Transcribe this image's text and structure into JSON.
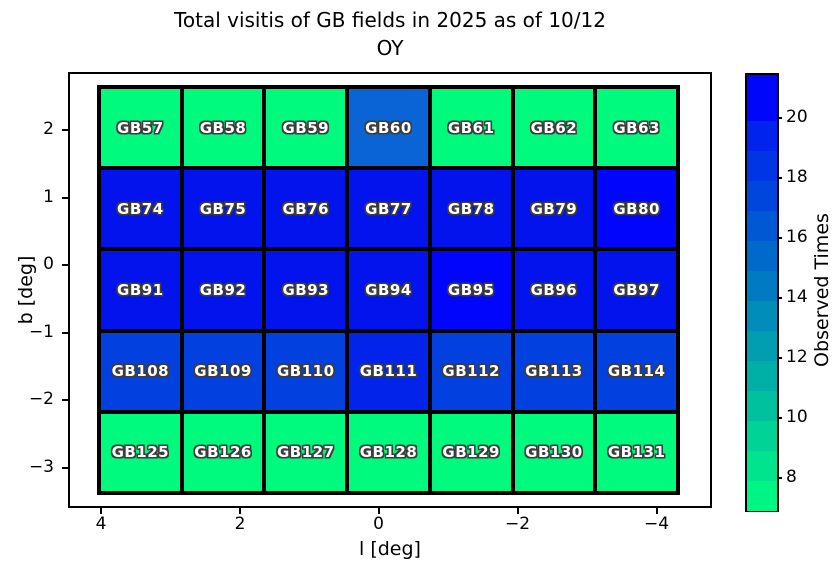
{
  "title": {
    "line1": "Total visitis of GB fields in 2025 as of 10/12",
    "line2": "OY"
  },
  "x_axis": {
    "label": "l [deg]",
    "ticks": [
      "4",
      "2",
      "0",
      "−2",
      "−4"
    ]
  },
  "y_axis": {
    "label": "b [deg]",
    "ticks": [
      "2",
      "1",
      "0",
      "−1",
      "−2",
      "−3"
    ]
  },
  "colorbar": {
    "label": "Observed Times",
    "tick_labels": [
      "8",
      "10",
      "12",
      "14",
      "16",
      "18",
      "20"
    ],
    "tick_values": [
      8,
      10,
      12,
      14,
      16,
      18,
      20
    ],
    "vmin": 7,
    "vmax": 21.5,
    "bands": [
      {
        "from": 7,
        "to": 8,
        "color": "#00F684"
      },
      {
        "from": 8,
        "to": 9,
        "color": "#00E58D"
      },
      {
        "from": 9,
        "to": 10,
        "color": "#00D396"
      },
      {
        "from": 10,
        "to": 11,
        "color": "#00C19E"
      },
      {
        "from": 11,
        "to": 12,
        "color": "#00B0A7"
      },
      {
        "from": 12,
        "to": 13,
        "color": "#009EB0"
      },
      {
        "from": 13,
        "to": 14,
        "color": "#008DB9"
      },
      {
        "from": 14,
        "to": 15,
        "color": "#007BC1"
      },
      {
        "from": 15,
        "to": 16,
        "color": "#006ACA"
      },
      {
        "from": 16,
        "to": 17,
        "color": "#0058D3"
      },
      {
        "from": 17,
        "to": 18,
        "color": "#0046DC"
      },
      {
        "from": 18,
        "to": 19,
        "color": "#0035E5"
      },
      {
        "from": 19,
        "to": 20,
        "color": "#0023EE"
      },
      {
        "from": 20,
        "to": 21.5,
        "color": "#0006FA"
      }
    ]
  },
  "chart_data": {
    "type": "heatmap",
    "title": "Total visitis of GB fields in 2025 as of 10/12 OY",
    "xlabel": "l [deg]",
    "ylabel": "b [deg]",
    "x_axis_inverted": true,
    "x_extent_left_to_right": [
      4.1,
      -4.35
    ],
    "y_extent_top_to_bottom": [
      2.67,
      -3.41
    ],
    "colormap": "winter_r (green = low, blue = high)",
    "value_meaning": "Observed Times",
    "rows": [
      {
        "b_center": 2.06,
        "cells": [
          {
            "name": "GB57",
            "value": 7,
            "color": "#00FA7E"
          },
          {
            "name": "GB58",
            "value": 7,
            "color": "#00FA7E"
          },
          {
            "name": "GB59",
            "value": 7,
            "color": "#00FA7E"
          },
          {
            "name": "GB60",
            "value": 16,
            "color": "#0A64D6"
          },
          {
            "name": "GB61",
            "value": 7,
            "color": "#00FA7E"
          },
          {
            "name": "GB62",
            "value": 7,
            "color": "#00FA7E"
          },
          {
            "name": "GB63",
            "value": 7,
            "color": "#00FA7E"
          }
        ]
      },
      {
        "b_center": 0.84,
        "cells": [
          {
            "name": "GB74",
            "value": 20,
            "color": "#0213EE"
          },
          {
            "name": "GB75",
            "value": 20,
            "color": "#0213EE"
          },
          {
            "name": "GB76",
            "value": 20,
            "color": "#0213EE"
          },
          {
            "name": "GB77",
            "value": 20,
            "color": "#0213EE"
          },
          {
            "name": "GB78",
            "value": 20,
            "color": "#0213EE"
          },
          {
            "name": "GB79",
            "value": 20,
            "color": "#0213EE"
          },
          {
            "name": "GB80",
            "value": 21,
            "color": "#0105FB"
          }
        ]
      },
      {
        "b_center": -0.37,
        "cells": [
          {
            "name": "GB91",
            "value": 20,
            "color": "#0213EE"
          },
          {
            "name": "GB92",
            "value": 20,
            "color": "#0213EE"
          },
          {
            "name": "GB93",
            "value": 20,
            "color": "#0213EE"
          },
          {
            "name": "GB94",
            "value": 20,
            "color": "#0213EE"
          },
          {
            "name": "GB95",
            "value": 21,
            "color": "#0105FB"
          },
          {
            "name": "GB96",
            "value": 20,
            "color": "#0213EE"
          },
          {
            "name": "GB97",
            "value": 20,
            "color": "#0213EE"
          }
        ]
      },
      {
        "b_center": -1.59,
        "cells": [
          {
            "name": "GB108",
            "value": 18,
            "color": "#0340E0"
          },
          {
            "name": "GB109",
            "value": 18,
            "color": "#0340E0"
          },
          {
            "name": "GB110",
            "value": 18,
            "color": "#0340E0"
          },
          {
            "name": "GB111",
            "value": 19,
            "color": "#0224EA"
          },
          {
            "name": "GB112",
            "value": 18,
            "color": "#0340E0"
          },
          {
            "name": "GB113",
            "value": 18,
            "color": "#0340E0"
          },
          {
            "name": "GB114",
            "value": 18,
            "color": "#0340E0"
          }
        ]
      },
      {
        "b_center": -2.8,
        "cells": [
          {
            "name": "GB125",
            "value": 7,
            "color": "#00FA7E"
          },
          {
            "name": "GB126",
            "value": 7,
            "color": "#00FA7E"
          },
          {
            "name": "GB127",
            "value": 7,
            "color": "#00FA7E"
          },
          {
            "name": "GB128",
            "value": 7,
            "color": "#00FA7E"
          },
          {
            "name": "GB129",
            "value": 7,
            "color": "#00FA7E"
          },
          {
            "name": "GB130",
            "value": 7,
            "color": "#00FA7E"
          },
          {
            "name": "GB131",
            "value": 7,
            "color": "#00FA7E"
          }
        ]
      }
    ]
  }
}
